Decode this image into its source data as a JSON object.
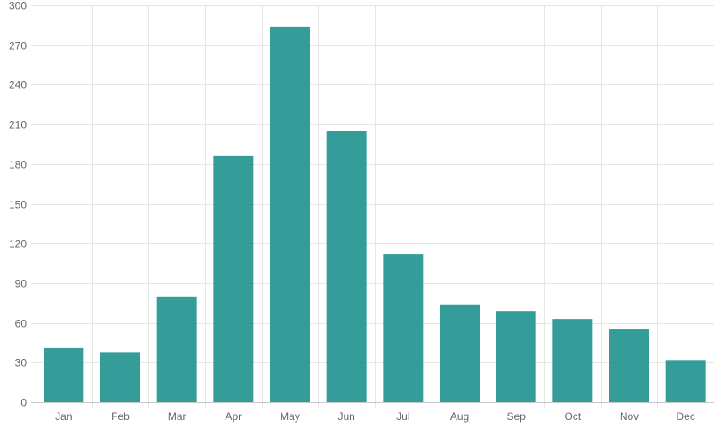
{
  "colors": {
    "bar": "#239591",
    "grid": "#e6e6e6",
    "axis": "#c8c8c8",
    "tick_text": "#666666",
    "background": "#ffffff"
  },
  "chart_data": {
    "type": "bar",
    "title": "",
    "xlabel": "",
    "ylabel": "",
    "categories": [
      "Jan",
      "Feb",
      "Mar",
      "Apr",
      "May",
      "Jun",
      "Jul",
      "Aug",
      "Sep",
      "Oct",
      "Nov",
      "Dec"
    ],
    "values": [
      41,
      38,
      80,
      186,
      284,
      205,
      112,
      74,
      69,
      63,
      55,
      32
    ],
    "ylim": [
      0,
      300
    ],
    "yticks": [
      0,
      30,
      60,
      90,
      120,
      150,
      180,
      210,
      240,
      270,
      300
    ],
    "grid": true,
    "legend": "none"
  }
}
